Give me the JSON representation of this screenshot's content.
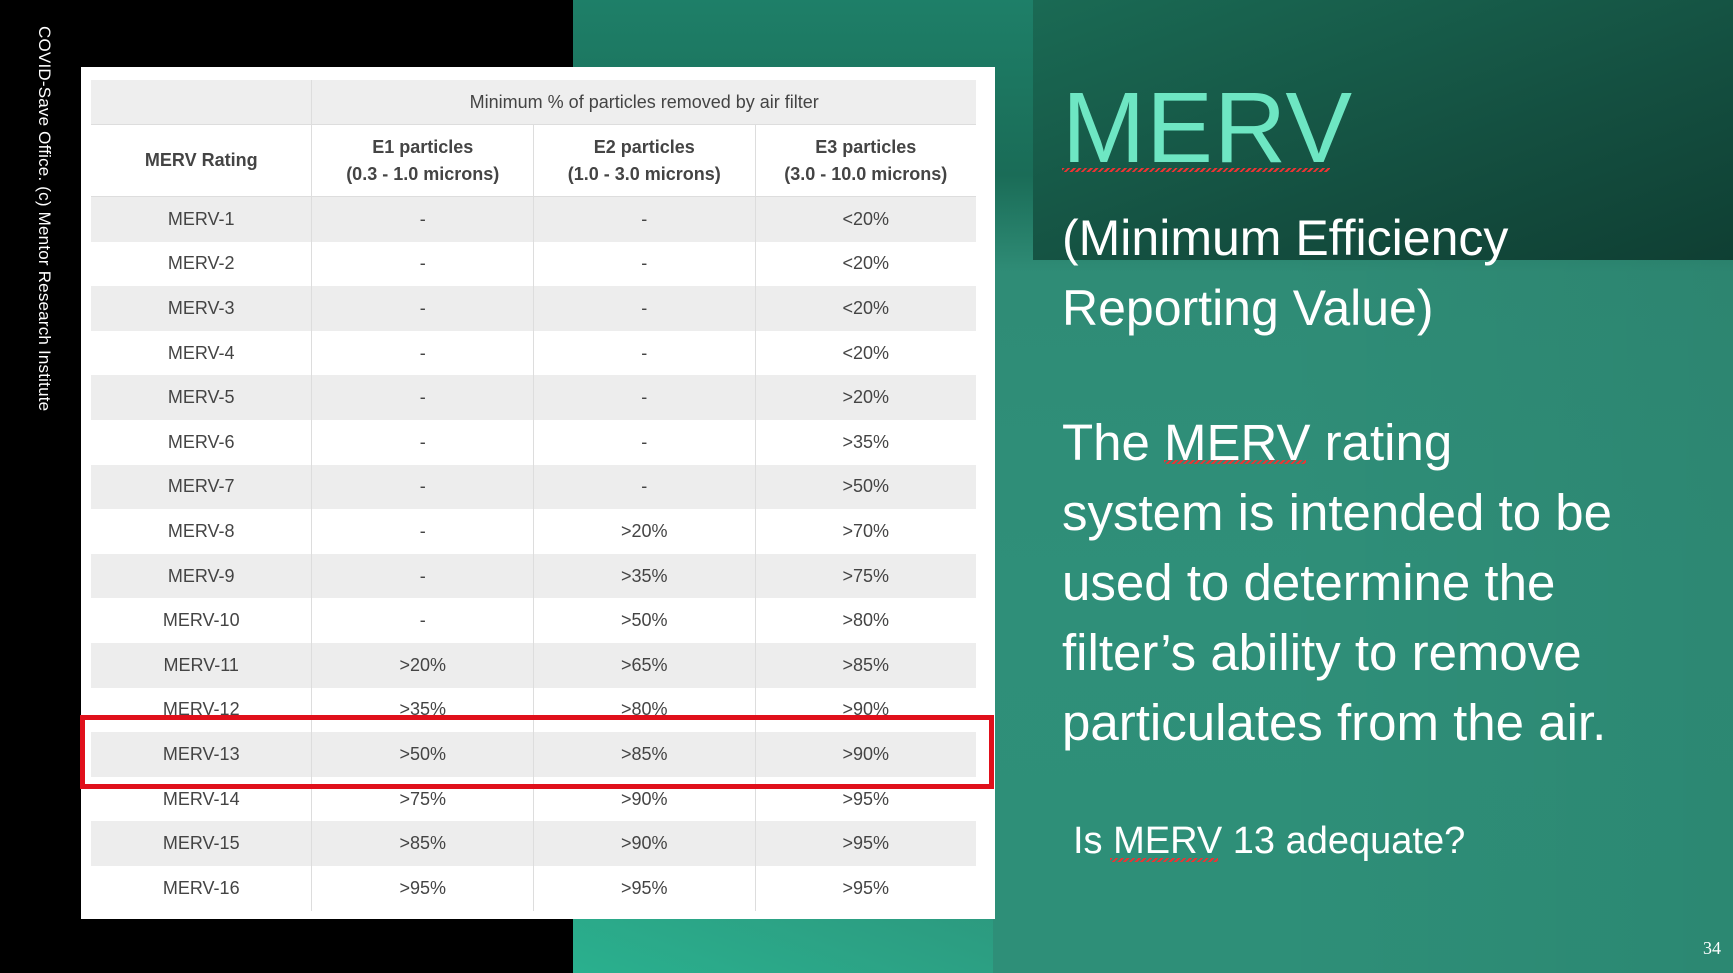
{
  "credit": "COVID-Save Office.  (c) Mentor Research Institute",
  "table": {
    "group_header": "Minimum % of particles removed by air filter",
    "columns": [
      {
        "line1": "MERV Rating",
        "line2": ""
      },
      {
        "line1": "E1 particles",
        "line2": "(0.3 - 1.0 microns)"
      },
      {
        "line1": "E2 particles",
        "line2": "(1.0 - 3.0 microns)"
      },
      {
        "line1": "E3 particles",
        "line2": "(3.0 - 10.0 microns)"
      }
    ],
    "rows": [
      [
        "MERV-1",
        "-",
        "-",
        "<20%"
      ],
      [
        "MERV-2",
        "-",
        "-",
        "<20%"
      ],
      [
        "MERV-3",
        "-",
        "-",
        "<20%"
      ],
      [
        "MERV-4",
        "-",
        "-",
        "<20%"
      ],
      [
        "MERV-5",
        "-",
        "-",
        ">20%"
      ],
      [
        "MERV-6",
        "-",
        "-",
        ">35%"
      ],
      [
        "MERV-7",
        "-",
        "-",
        ">50%"
      ],
      [
        "MERV-8",
        "-",
        ">20%",
        ">70%"
      ],
      [
        "MERV-9",
        "-",
        ">35%",
        ">75%"
      ],
      [
        "MERV-10",
        "-",
        ">50%",
        ">80%"
      ],
      [
        "MERV-11",
        ">20%",
        ">65%",
        ">85%"
      ],
      [
        "MERV-12",
        ">35%",
        ">80%",
        ">90%"
      ],
      [
        "MERV-13",
        ">50%",
        ">85%",
        ">90%"
      ],
      [
        "MERV-14",
        ">75%",
        ">90%",
        ">95%"
      ],
      [
        "MERV-15",
        ">85%",
        ">90%",
        ">95%"
      ],
      [
        "MERV-16",
        ">95%",
        ">95%",
        ">95%"
      ]
    ],
    "highlighted_row": "MERV-13"
  },
  "title": "MERV",
  "subtitle_line1": "(Minimum Efficiency",
  "subtitle_line2": "Reporting Value)",
  "body_lines": [
    "The MERV rating",
    "system is intended to be",
    "used to determine the",
    "filter’s ability to remove",
    "particulates from the air."
  ],
  "question": "Is MERV 13 adequate?",
  "page_number": "34",
  "colors": {
    "title": "#6ee6c3",
    "highlight": "#e0101b"
  }
}
